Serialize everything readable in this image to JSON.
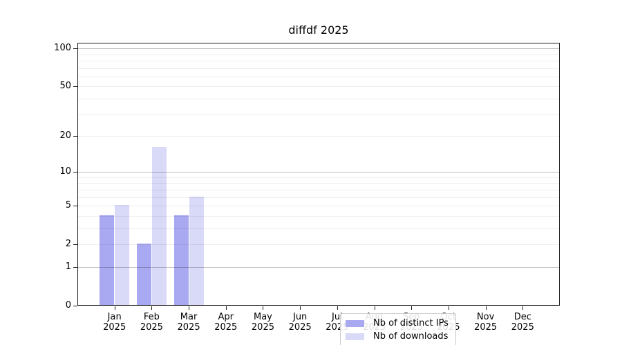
{
  "chart_data": {
    "type": "bar",
    "title": "diffdf 2025",
    "year": "2025",
    "categories": [
      "Jan",
      "Feb",
      "Mar",
      "Apr",
      "May",
      "Jun",
      "Jul",
      "Aug",
      "Sep",
      "Oct",
      "Nov",
      "Dec"
    ],
    "series": [
      {
        "name": "Nb of distinct IPs",
        "color": "#a9a9f2",
        "values": [
          4,
          2,
          4,
          0,
          0,
          0,
          0,
          0,
          0,
          0,
          0,
          0
        ]
      },
      {
        "name": "Nb of downloads",
        "color": "#d9d9f8",
        "values": [
          5,
          16,
          6,
          0,
          0,
          0,
          0,
          0,
          0,
          0,
          0,
          0
        ]
      }
    ],
    "xlabel": "",
    "ylabel": "",
    "yscale": "log1p",
    "ylim": [
      0,
      111
    ],
    "y_ticks": [
      0,
      1,
      2,
      5,
      10,
      20,
      50,
      100
    ],
    "y_major_gridlines": [
      1,
      10,
      100
    ],
    "y_minor_gridlines": [
      2,
      3,
      4,
      5,
      6,
      7,
      8,
      9,
      20,
      30,
      40,
      50,
      60,
      70,
      80,
      90
    ],
    "grid": "horizontal only",
    "legend_position": "lower center, inside plot"
  }
}
